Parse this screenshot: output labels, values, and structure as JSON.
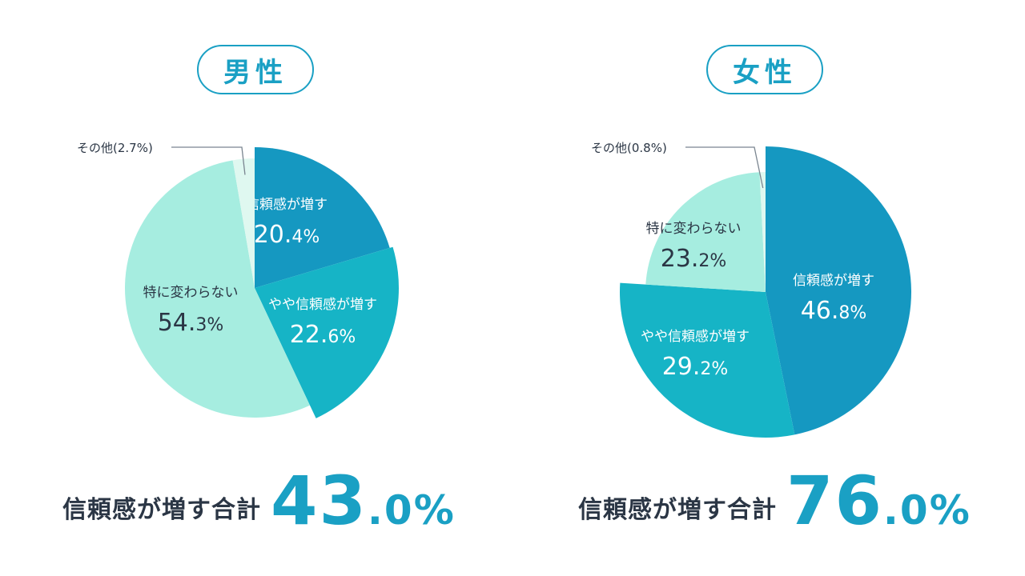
{
  "chart_data": [
    {
      "type": "pie",
      "title": "男性",
      "slices": [
        {
          "label": "信頼感が増す",
          "value": 20.4,
          "display": "20.4%",
          "color": "#1598c1",
          "text_color": "#ffffff"
        },
        {
          "label": "やや信頼感が増す",
          "value": 22.6,
          "display": "22.6%",
          "color": "#16b4c6",
          "text_color": "#ffffff"
        },
        {
          "label": "特に変わらない",
          "value": 54.3,
          "display": "54.3%",
          "color": "#a6ede0",
          "text_color": "#2b3645"
        },
        {
          "label": "その他",
          "value": 2.7,
          "display": "その他(2.7%)",
          "color": "#dff8f0",
          "text_color": "#2b3645"
        }
      ],
      "total_label": "信頼感が増す合計",
      "total_value": "43.0%"
    },
    {
      "type": "pie",
      "title": "女性",
      "slices": [
        {
          "label": "信頼感が増す",
          "value": 46.8,
          "display": "46.8%",
          "color": "#1598c1",
          "text_color": "#ffffff"
        },
        {
          "label": "やや信頼感が増す",
          "value": 29.2,
          "display": "29.2%",
          "color": "#16b4c6",
          "text_color": "#ffffff"
        },
        {
          "label": "特に変わらない",
          "value": 23.2,
          "display": "23.2%",
          "color": "#a6ede0",
          "text_color": "#2b3645"
        },
        {
          "label": "その他",
          "value": 0.8,
          "display": "その他(0.8%)",
          "color": "#dff8f0",
          "text_color": "#2b3645"
        }
      ],
      "total_label": "信頼感が増す合計",
      "total_value": "76.0%"
    }
  ]
}
